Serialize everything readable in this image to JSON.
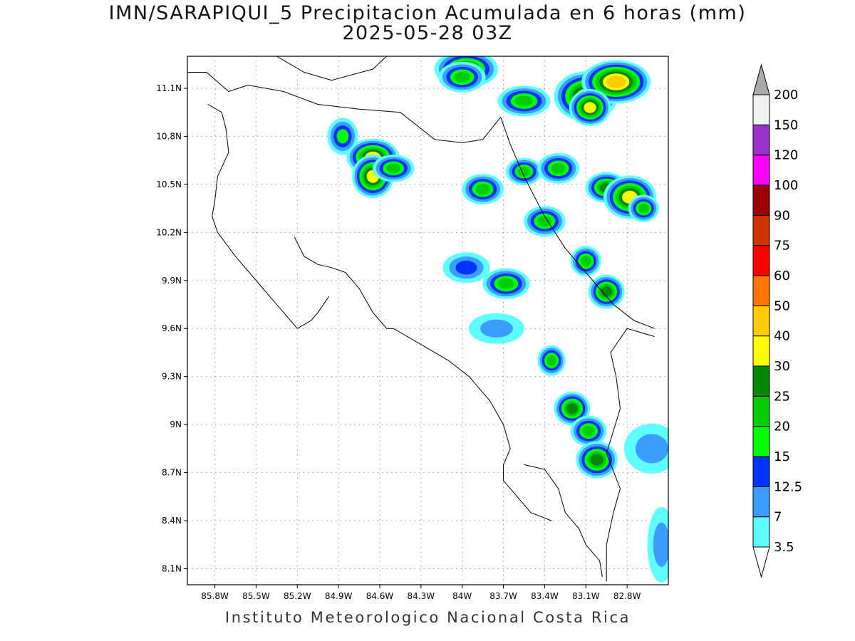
{
  "title": {
    "line1": "IMN/SARAPIQUI_5 Precipitacion Acumulada en 6 horas (mm)",
    "line2": "2025-05-28 03Z"
  },
  "footer": "Instituto Meteorologico Nacional Costa Rica",
  "map": {
    "lon_range": [
      -86.0,
      -82.5
    ],
    "lat_range": [
      8.0,
      11.3
    ],
    "x_ticks": [
      {
        "value": -85.8,
        "label": "85.8W"
      },
      {
        "value": -85.5,
        "label": "85.5W"
      },
      {
        "value": -85.2,
        "label": "85.2W"
      },
      {
        "value": -84.9,
        "label": "84.9W"
      },
      {
        "value": -84.6,
        "label": "84.6W"
      },
      {
        "value": -84.3,
        "label": "84.3W"
      },
      {
        "value": -84.0,
        "label": "84W"
      },
      {
        "value": -83.7,
        "label": "83.7W"
      },
      {
        "value": -83.4,
        "label": "83.4W"
      },
      {
        "value": -83.1,
        "label": "83.1W"
      },
      {
        "value": -82.8,
        "label": "82.8W"
      }
    ],
    "y_ticks": [
      {
        "value": 11.1,
        "label": "11.1N"
      },
      {
        "value": 10.8,
        "label": "10.8N"
      },
      {
        "value": 10.5,
        "label": "10.5N"
      },
      {
        "value": 10.2,
        "label": "10.2N"
      },
      {
        "value": 9.9,
        "label": "9.9N"
      },
      {
        "value": 9.6,
        "label": "9.6N"
      },
      {
        "value": 9.3,
        "label": "9.3N"
      },
      {
        "value": 9.0,
        "label": "9N"
      },
      {
        "value": 8.7,
        "label": "8.7N"
      },
      {
        "value": 8.4,
        "label": "8.4N"
      },
      {
        "value": 8.1,
        "label": "8.1N"
      }
    ],
    "grid": true,
    "boundaries": {
      "nicaragua_border": [
        [
          -86.0,
          11.2
        ],
        [
          -85.86,
          11.2
        ],
        [
          -85.7,
          11.08
        ],
        [
          -85.56,
          11.12
        ],
        [
          -85.3,
          11.08
        ],
        [
          -85.05,
          11.0
        ],
        [
          -84.75,
          10.97
        ],
        [
          -84.45,
          10.95
        ],
        [
          -84.2,
          10.78
        ],
        [
          -84.0,
          10.76
        ],
        [
          -83.85,
          10.78
        ],
        [
          -83.72,
          10.92
        ]
      ],
      "lake_shore": [
        [
          -85.35,
          11.3
        ],
        [
          -85.15,
          11.2
        ],
        [
          -84.95,
          11.15
        ],
        [
          -84.65,
          11.22
        ],
        [
          -84.55,
          11.3
        ]
      ],
      "pacific_coast_north": [
        [
          -85.85,
          11.0
        ],
        [
          -85.75,
          10.95
        ],
        [
          -85.72,
          10.85
        ],
        [
          -85.7,
          10.7
        ],
        [
          -85.78,
          10.55
        ],
        [
          -85.8,
          10.4
        ],
        [
          -85.82,
          10.3
        ],
        [
          -85.78,
          10.2
        ],
        [
          -85.65,
          10.05
        ],
        [
          -85.55,
          9.95
        ],
        [
          -85.4,
          9.8
        ],
        [
          -85.2,
          9.6
        ],
        [
          -85.1,
          9.65
        ],
        [
          -85.05,
          9.7
        ],
        [
          -84.97,
          9.8
        ]
      ],
      "nicoya_gulf_east": [
        [
          -85.22,
          10.17
        ],
        [
          -85.15,
          10.05
        ],
        [
          -85.05,
          10.0
        ],
        [
          -84.95,
          9.98
        ],
        [
          -84.85,
          9.95
        ],
        [
          -84.75,
          9.85
        ],
        [
          -84.65,
          9.7
        ],
        [
          -84.55,
          9.6
        ],
        [
          -84.5,
          9.6
        ],
        [
          -84.3,
          9.5
        ],
        [
          -84.1,
          9.4
        ],
        [
          -83.95,
          9.3
        ],
        [
          -83.8,
          9.15
        ],
        [
          -83.7,
          9.0
        ],
        [
          -83.65,
          8.85
        ],
        [
          -83.7,
          8.75
        ],
        [
          -83.7,
          8.65
        ],
        [
          -83.6,
          8.55
        ],
        [
          -83.5,
          8.45
        ],
        [
          -83.35,
          8.4
        ]
      ],
      "panama_border": [
        [
          -82.95,
          8.02
        ],
        [
          -82.95,
          8.25
        ],
        [
          -82.9,
          8.45
        ],
        [
          -82.85,
          8.6
        ],
        [
          -82.95,
          8.82
        ],
        [
          -82.85,
          9.1
        ],
        [
          -82.88,
          9.3
        ],
        [
          -82.92,
          9.45
        ],
        [
          -82.8,
          9.6
        ],
        [
          -82.6,
          9.55
        ]
      ],
      "caribbean_coast": [
        [
          -83.72,
          10.92
        ],
        [
          -83.65,
          10.75
        ],
        [
          -83.55,
          10.55
        ],
        [
          -83.4,
          10.3
        ],
        [
          -83.25,
          10.1
        ],
        [
          -83.05,
          9.9
        ],
        [
          -82.9,
          9.75
        ],
        [
          -82.75,
          9.65
        ],
        [
          -82.6,
          9.6
        ]
      ],
      "osa_peninsula": [
        [
          -83.55,
          8.75
        ],
        [
          -83.4,
          8.72
        ],
        [
          -83.3,
          8.6
        ],
        [
          -83.25,
          8.45
        ],
        [
          -83.15,
          8.35
        ],
        [
          -83.1,
          8.25
        ],
        [
          -83.0,
          8.15
        ],
        [
          -82.98,
          8.05
        ]
      ]
    },
    "precip_cells": [
      {
        "lon": -83.97,
        "lat": 11.22,
        "rx": 0.18,
        "ry": 0.08,
        "peak": 25
      },
      {
        "lon": -84.0,
        "lat": 11.17,
        "rx": 0.12,
        "ry": 0.06,
        "peak": 20
      },
      {
        "lon": -83.55,
        "lat": 11.02,
        "rx": 0.14,
        "ry": 0.06,
        "peak": 20
      },
      {
        "lon": -83.1,
        "lat": 11.05,
        "rx": 0.18,
        "ry": 0.12,
        "peak": 30
      },
      {
        "lon": -82.88,
        "lat": 11.14,
        "rx": 0.2,
        "ry": 0.1,
        "peak": 40
      },
      {
        "lon": -83.07,
        "lat": 10.98,
        "rx": 0.1,
        "ry": 0.08,
        "peak": 30
      },
      {
        "lon": -84.87,
        "lat": 10.8,
        "rx": 0.06,
        "ry": 0.08,
        "peak": 15
      },
      {
        "lon": -84.65,
        "lat": 10.67,
        "rx": 0.14,
        "ry": 0.08,
        "peak": 30
      },
      {
        "lon": -84.65,
        "lat": 10.55,
        "rx": 0.1,
        "ry": 0.1,
        "peak": 30
      },
      {
        "lon": -84.5,
        "lat": 10.6,
        "rx": 0.1,
        "ry": 0.05,
        "peak": 20
      },
      {
        "lon": -83.85,
        "lat": 10.47,
        "rx": 0.1,
        "ry": 0.06,
        "peak": 20
      },
      {
        "lon": -83.55,
        "lat": 10.58,
        "rx": 0.08,
        "ry": 0.05,
        "peak": 20
      },
      {
        "lon": -83.3,
        "lat": 10.6,
        "rx": 0.1,
        "ry": 0.06,
        "peak": 20
      },
      {
        "lon": -82.95,
        "lat": 10.48,
        "rx": 0.1,
        "ry": 0.06,
        "peak": 25
      },
      {
        "lon": -82.78,
        "lat": 10.42,
        "rx": 0.14,
        "ry": 0.1,
        "peak": 35
      },
      {
        "lon": -82.68,
        "lat": 10.35,
        "rx": 0.06,
        "ry": 0.05,
        "peak": 20
      },
      {
        "lon": -83.4,
        "lat": 10.27,
        "rx": 0.1,
        "ry": 0.06,
        "peak": 20
      },
      {
        "lon": -83.97,
        "lat": 9.98,
        "rx": 0.12,
        "ry": 0.06,
        "peak": 12.5
      },
      {
        "lon": -83.68,
        "lat": 9.88,
        "rx": 0.12,
        "ry": 0.06,
        "peak": 20
      },
      {
        "lon": -83.1,
        "lat": 10.02,
        "rx": 0.06,
        "ry": 0.06,
        "peak": 20
      },
      {
        "lon": -82.95,
        "lat": 9.83,
        "rx": 0.08,
        "ry": 0.07,
        "peak": 25
      },
      {
        "lon": -83.75,
        "lat": 9.6,
        "rx": 0.15,
        "ry": 0.06,
        "peak": 7
      },
      {
        "lon": -83.35,
        "lat": 9.4,
        "rx": 0.05,
        "ry": 0.06,
        "peak": 20
      },
      {
        "lon": -83.2,
        "lat": 9.1,
        "rx": 0.08,
        "ry": 0.07,
        "peak": 25
      },
      {
        "lon": -83.08,
        "lat": 8.96,
        "rx": 0.08,
        "ry": 0.06,
        "peak": 20
      },
      {
        "lon": -83.02,
        "lat": 8.78,
        "rx": 0.1,
        "ry": 0.08,
        "peak": 25
      },
      {
        "lon": -82.62,
        "lat": 8.85,
        "rx": 0.15,
        "ry": 0.12,
        "peak": 7
      },
      {
        "lon": -82.55,
        "lat": 8.25,
        "rx": 0.05,
        "ry": 0.2,
        "peak": 7
      }
    ]
  },
  "legend": {
    "levels": [
      {
        "label": "3.5",
        "color": "#5fffff"
      },
      {
        "label": "7",
        "color": "#3a9dff"
      },
      {
        "label": "12.5",
        "color": "#0033ff"
      },
      {
        "label": "15",
        "color": "#00ff00"
      },
      {
        "label": "20",
        "color": "#00cc00"
      },
      {
        "label": "25",
        "color": "#008800"
      },
      {
        "label": "30",
        "color": "#ffff00"
      },
      {
        "label": "40",
        "color": "#ffcc00"
      },
      {
        "label": "50",
        "color": "#ff7700"
      },
      {
        "label": "60",
        "color": "#ff0000"
      },
      {
        "label": "75",
        "color": "#cc3300"
      },
      {
        "label": "90",
        "color": "#990000"
      },
      {
        "label": "100",
        "color": "#ff00ff"
      },
      {
        "label": "120",
        "color": "#9933cc"
      },
      {
        "label": "150",
        "color": "#f2f2f2"
      },
      {
        "label": "200",
        "color": "#aaaaaa"
      }
    ]
  }
}
